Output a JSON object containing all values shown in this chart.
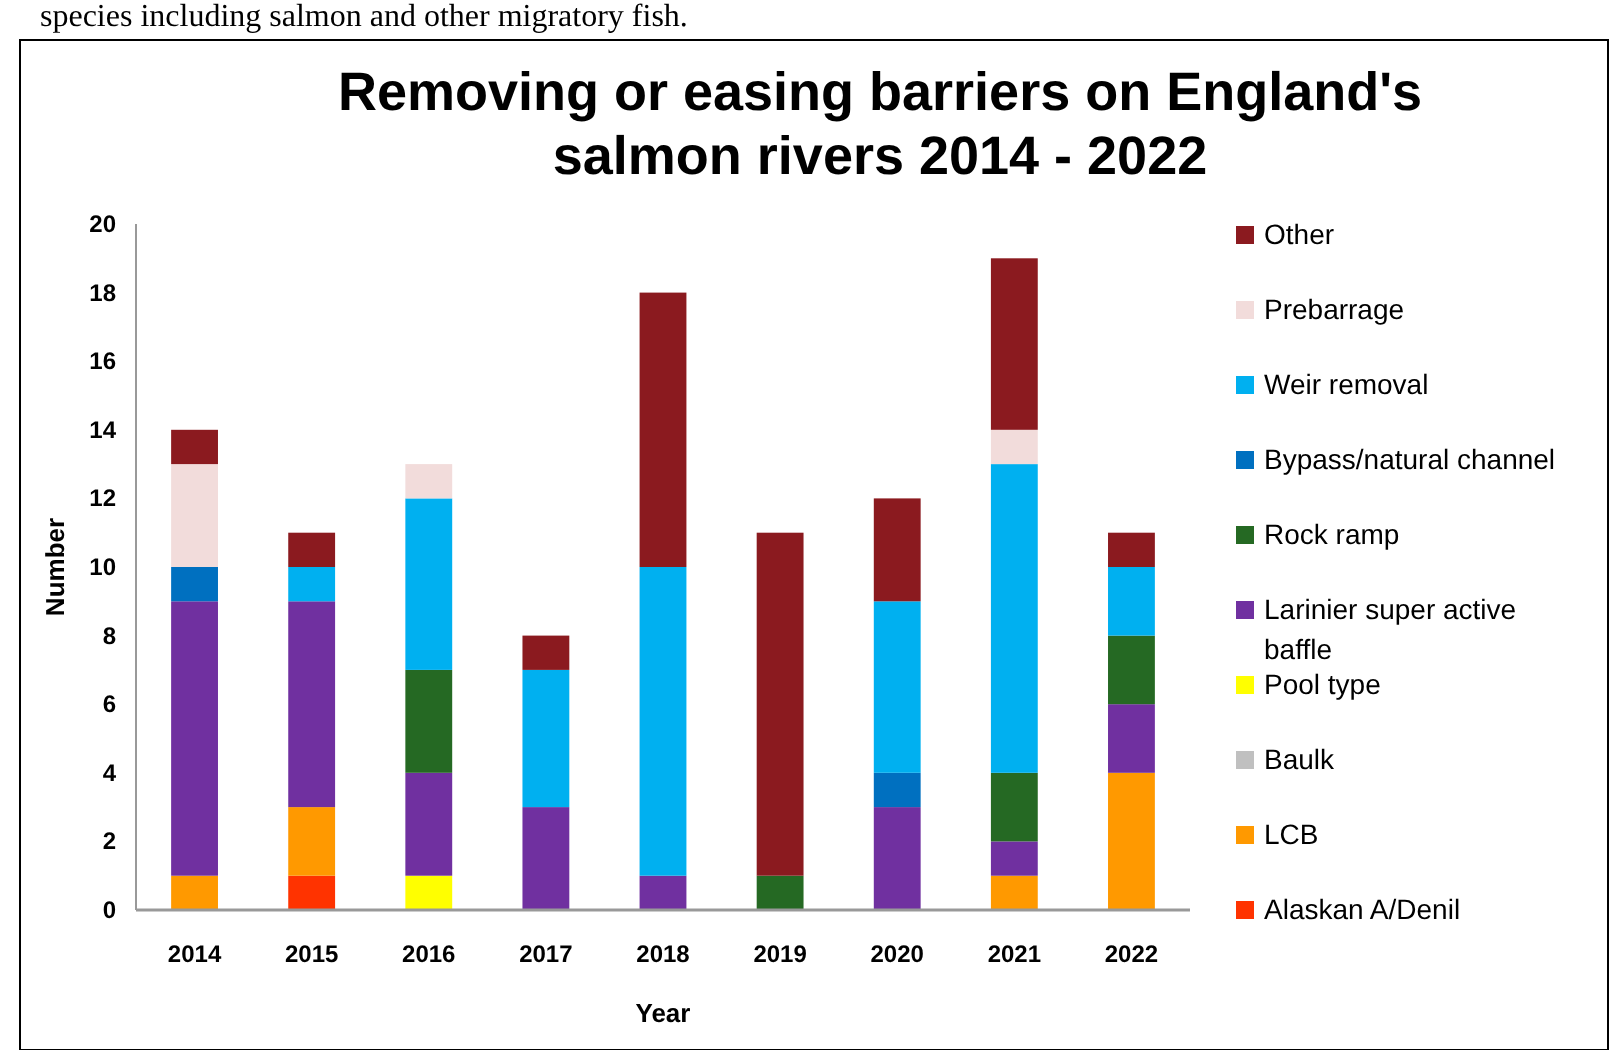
{
  "chart_data": {
    "type": "bar",
    "title": "Removing or easing barriers on England's salmon rivers 2014 - 2022",
    "xlabel": "Year",
    "ylabel": "Number",
    "annotations": [
      "species including salmon and other migratory fish."
    ],
    "categories": [
      "2014",
      "2015",
      "2016",
      "2017",
      "2018",
      "2019",
      "2020",
      "2021",
      "2022"
    ],
    "stacked": true,
    "ylim": [
      0,
      20
    ],
    "yticks": [
      0,
      2,
      4,
      6,
      8,
      10,
      12,
      14,
      16,
      18,
      20
    ],
    "grid": false,
    "legend": "right",
    "series": [
      {
        "name": "Alaskan A/Denil",
        "color": "#ff3300",
        "values": [
          0,
          1,
          0,
          0,
          0,
          0,
          0,
          0,
          0
        ]
      },
      {
        "name": "LCB",
        "color": "#ff9900",
        "values": [
          1,
          2,
          0,
          0,
          0,
          0,
          0,
          1,
          4
        ]
      },
      {
        "name": "Baulk",
        "color": "#c0c0c0",
        "values": [
          0,
          0,
          0,
          0,
          0,
          0,
          0,
          0,
          0
        ]
      },
      {
        "name": "Pool type",
        "color": "#ffff00",
        "values": [
          0,
          0,
          1,
          0,
          0,
          0,
          0,
          0,
          0
        ]
      },
      {
        "name": "Larinier super active baffle",
        "color": "#7030a0",
        "values": [
          8,
          6,
          3,
          3,
          1,
          0,
          3,
          1,
          2
        ]
      },
      {
        "name": "Rock ramp",
        "color": "#256923",
        "values": [
          0,
          0,
          3,
          0,
          0,
          1,
          0,
          2,
          2
        ]
      },
      {
        "name": "Bypass/natural channel",
        "color": "#0070c0",
        "values": [
          1,
          0,
          0,
          0,
          0,
          0,
          1,
          0,
          0
        ]
      },
      {
        "name": "Weir removal",
        "color": "#00b0f0",
        "values": [
          0,
          1,
          5,
          4,
          9,
          0,
          5,
          9,
          2
        ]
      },
      {
        "name": "Prebarrage",
        "color": "#f2dcdb",
        "values": [
          3,
          0,
          1,
          0,
          0,
          0,
          0,
          1,
          0
        ]
      },
      {
        "name": "Other",
        "color": "#8b1a1f",
        "values": [
          1,
          1,
          0,
          1,
          8,
          10,
          3,
          5,
          1
        ]
      }
    ]
  }
}
